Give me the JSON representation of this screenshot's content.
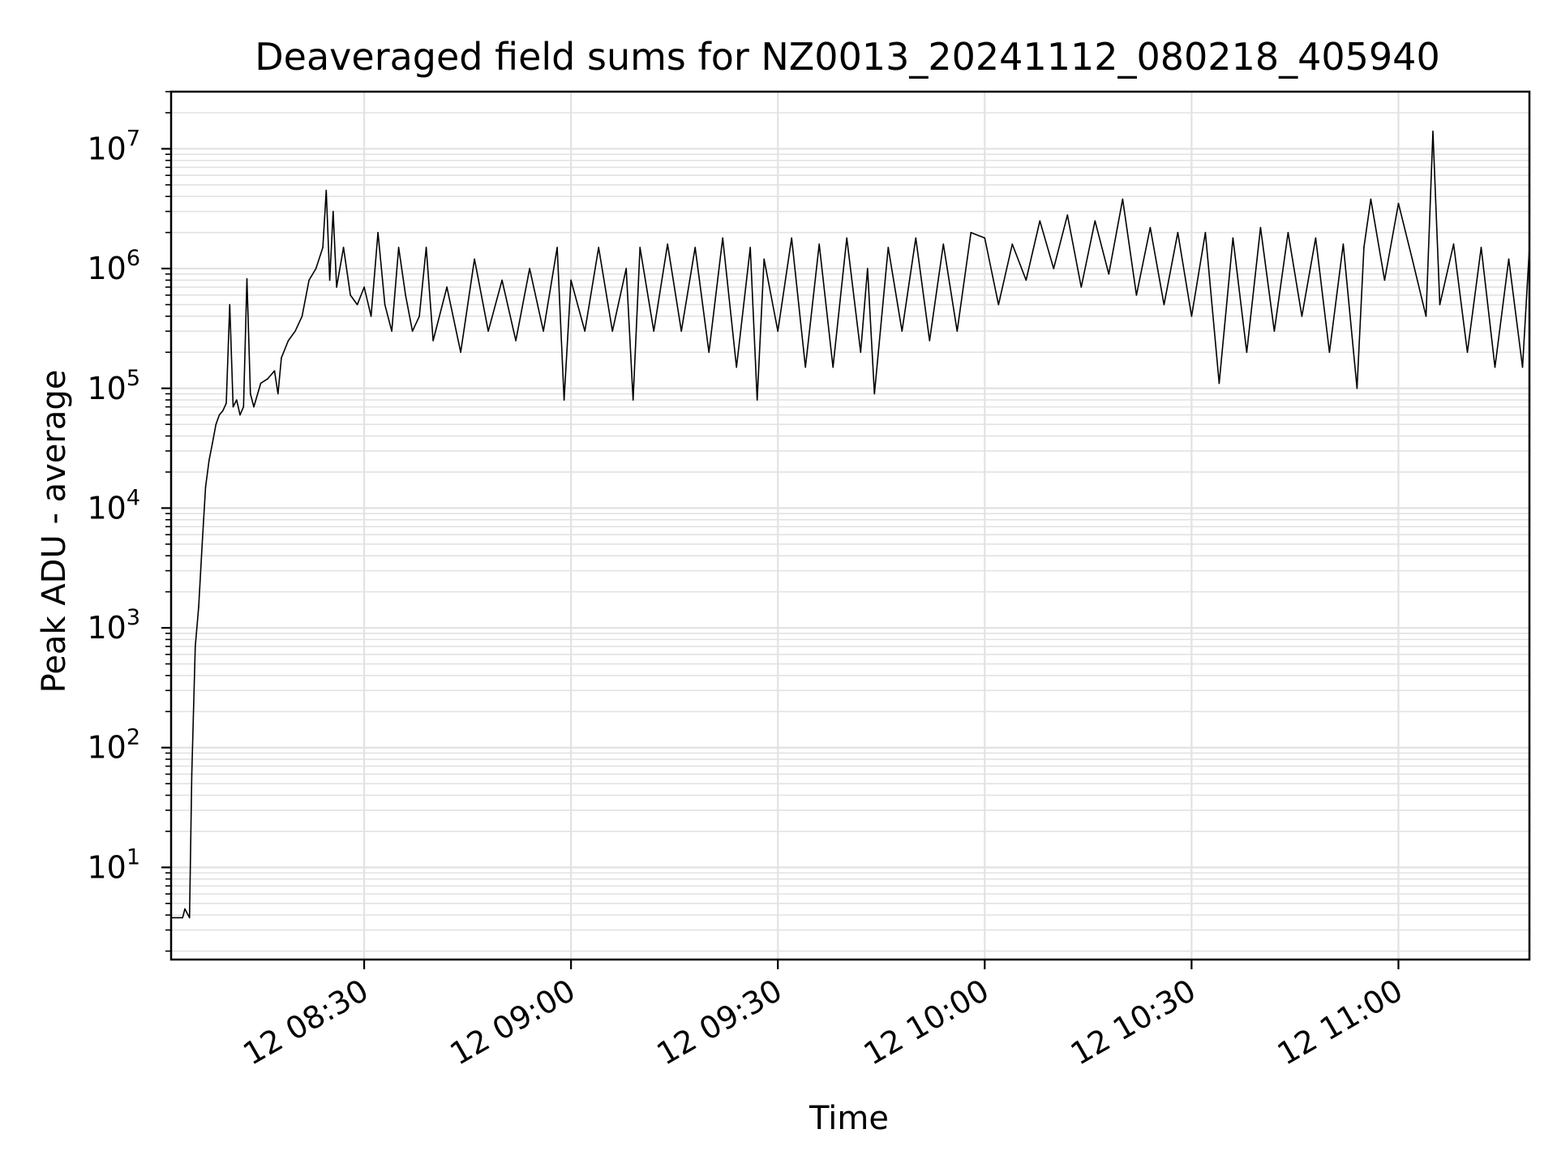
{
  "chart_data": {
    "type": "line",
    "title": "Deaveraged field sums for NZ0013_20241112_080218_405940",
    "xlabel": "Time",
    "ylabel": "Peak ADU - average",
    "y_scale": "log",
    "ylim": [
      1.7,
      30000000
    ],
    "xlim": [
      "2024-11-12 08:02:00",
      "2024-11-12 11:19:00"
    ],
    "x_ticks": [
      {
        "value": "2024-11-12 08:30:00",
        "label": "12 08:30"
      },
      {
        "value": "2024-11-12 09:00:00",
        "label": "12 09:00"
      },
      {
        "value": "2024-11-12 09:30:00",
        "label": "12 09:30"
      },
      {
        "value": "2024-11-12 10:00:00",
        "label": "12 10:00"
      },
      {
        "value": "2024-11-12 10:30:00",
        "label": "12 10:30"
      },
      {
        "value": "2024-11-12 11:00:00",
        "label": "12 11:00"
      }
    ],
    "y_ticks": [
      {
        "value": 10,
        "base": "10",
        "exp": "1"
      },
      {
        "value": 100,
        "base": "10",
        "exp": "2"
      },
      {
        "value": 1000,
        "base": "10",
        "exp": "3"
      },
      {
        "value": 10000,
        "base": "10",
        "exp": "4"
      },
      {
        "value": 100000,
        "base": "10",
        "exp": "5"
      },
      {
        "value": 1000000,
        "base": "10",
        "exp": "6"
      },
      {
        "value": 10000000,
        "base": "10",
        "exp": "7"
      }
    ],
    "grid": true,
    "legend": "none",
    "line_color": "#000000",
    "series": [
      {
        "x": [
          "08:02",
          "08:03",
          "08:03:40",
          "08:04",
          "08:04:40",
          "08:05",
          "08:05:30",
          "08:06",
          "08:06:30",
          "08:07",
          "08:07:30",
          "08:08",
          "08:08:30",
          "08:09",
          "08:09:30",
          "08:10",
          "08:10:30",
          "08:11",
          "08:11:30",
          "08:12",
          "08:12:30",
          "08:13",
          "08:13:30",
          "08:14",
          "08:15",
          "08:16",
          "08:17",
          "08:17:30",
          "08:18",
          "08:19",
          "08:20",
          "08:21",
          "08:22",
          "08:23",
          "08:24",
          "08:24:30",
          "08:25",
          "08:25:30",
          "08:26",
          "08:27",
          "08:28",
          "08:29",
          "08:30",
          "08:31",
          "08:32",
          "08:33",
          "08:34",
          "08:35",
          "08:36",
          "08:37",
          "08:38",
          "08:39",
          "08:40",
          "08:42",
          "08:44",
          "08:46",
          "08:48",
          "08:50",
          "08:52",
          "08:54",
          "08:56",
          "08:58",
          "08:59",
          "09:00",
          "09:02",
          "09:04",
          "09:06",
          "09:08",
          "09:09",
          "09:10",
          "09:12",
          "09:14",
          "09:16",
          "09:18",
          "09:20",
          "09:22",
          "09:24",
          "09:26",
          "09:27",
          "09:28",
          "09:30",
          "09:32",
          "09:34",
          "09:36",
          "09:38",
          "09:40",
          "09:42",
          "09:43",
          "09:44",
          "09:46",
          "09:48",
          "09:50",
          "09:52",
          "09:54",
          "09:56",
          "09:58",
          "10:00",
          "10:02",
          "10:04",
          "10:06",
          "10:08",
          "10:10",
          "10:12",
          "10:14",
          "10:16",
          "10:18",
          "10:20",
          "10:22",
          "10:24",
          "10:26",
          "10:28",
          "10:30",
          "10:32",
          "10:34",
          "10:36",
          "10:38",
          "10:40",
          "10:42",
          "10:44",
          "10:46",
          "10:48",
          "10:50",
          "10:52",
          "10:54",
          "10:55",
          "10:56",
          "10:58",
          "11:00",
          "11:02",
          "11:04",
          "11:05",
          "11:06",
          "11:08",
          "11:10",
          "11:12",
          "11:14",
          "11:16",
          "11:18",
          "11:19"
        ],
        "y": [
          3.8,
          3.8,
          3.8,
          4.5,
          3.8,
          60,
          700,
          1500,
          5000,
          15000,
          25000,
          35000,
          50000,
          60000,
          65000,
          75000,
          500000,
          70000,
          80000,
          60000,
          70000,
          820000,
          90000,
          70000,
          110000,
          120000,
          140000,
          90000,
          180000,
          250000,
          300000,
          400000,
          800000,
          1000000,
          1500000,
          4500000,
          800000,
          3000000,
          700000,
          1500000,
          600000,
          500000,
          700000,
          400000,
          2000000,
          500000,
          300000,
          1500000,
          600000,
          300000,
          400000,
          1500000,
          250000,
          700000,
          200000,
          1200000,
          300000,
          800000,
          250000,
          1000000,
          300000,
          1500000,
          80000,
          800000,
          300000,
          1500000,
          300000,
          1000000,
          80000,
          1500000,
          300000,
          1600000,
          300000,
          1500000,
          200000,
          1800000,
          150000,
          1500000,
          80000,
          1200000,
          300000,
          1800000,
          150000,
          1600000,
          150000,
          1800000,
          200000,
          1000000,
          90000,
          1500000,
          300000,
          1800000,
          250000,
          1600000,
          300000,
          2000000,
          1800000,
          500000,
          1600000,
          800000,
          2500000,
          1000000,
          2800000,
          700000,
          2500000,
          900000,
          3800000,
          600000,
          2200000,
          500000,
          2000000,
          400000,
          2000000,
          110000,
          1800000,
          200000,
          2200000,
          300000,
          2000000,
          400000,
          1800000,
          200000,
          1600000,
          100000,
          1500000,
          3800000,
          800000,
          3500000,
          1200000,
          400000,
          14000000,
          500000,
          1600000,
          200000,
          1500000,
          150000,
          1200000,
          150000,
          1500000
        ]
      }
    ]
  }
}
